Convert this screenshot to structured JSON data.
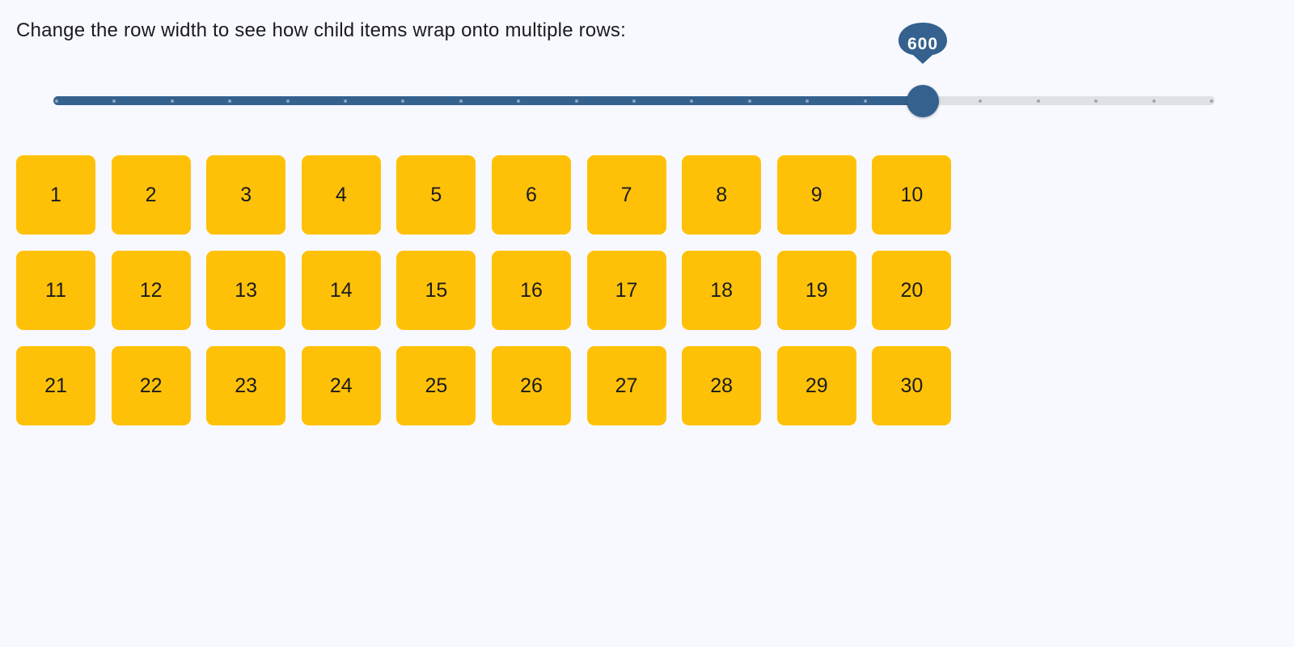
{
  "title": "Change the row width to see how child items wrap onto multiple rows:",
  "slider": {
    "min": 0,
    "max": 800,
    "value": 600,
    "divisions": 20,
    "label": "600"
  },
  "colors": {
    "accent": "#35618e",
    "track_inactive": "#e0e1e6",
    "item": "#ffc107",
    "background": "#f8f9ff"
  },
  "items": [
    "1",
    "2",
    "3",
    "4",
    "5",
    "6",
    "7",
    "8",
    "9",
    "10",
    "11",
    "12",
    "13",
    "14",
    "15",
    "16",
    "17",
    "18",
    "19",
    "20",
    "21",
    "22",
    "23",
    "24",
    "25",
    "26",
    "27",
    "28",
    "29",
    "30"
  ]
}
